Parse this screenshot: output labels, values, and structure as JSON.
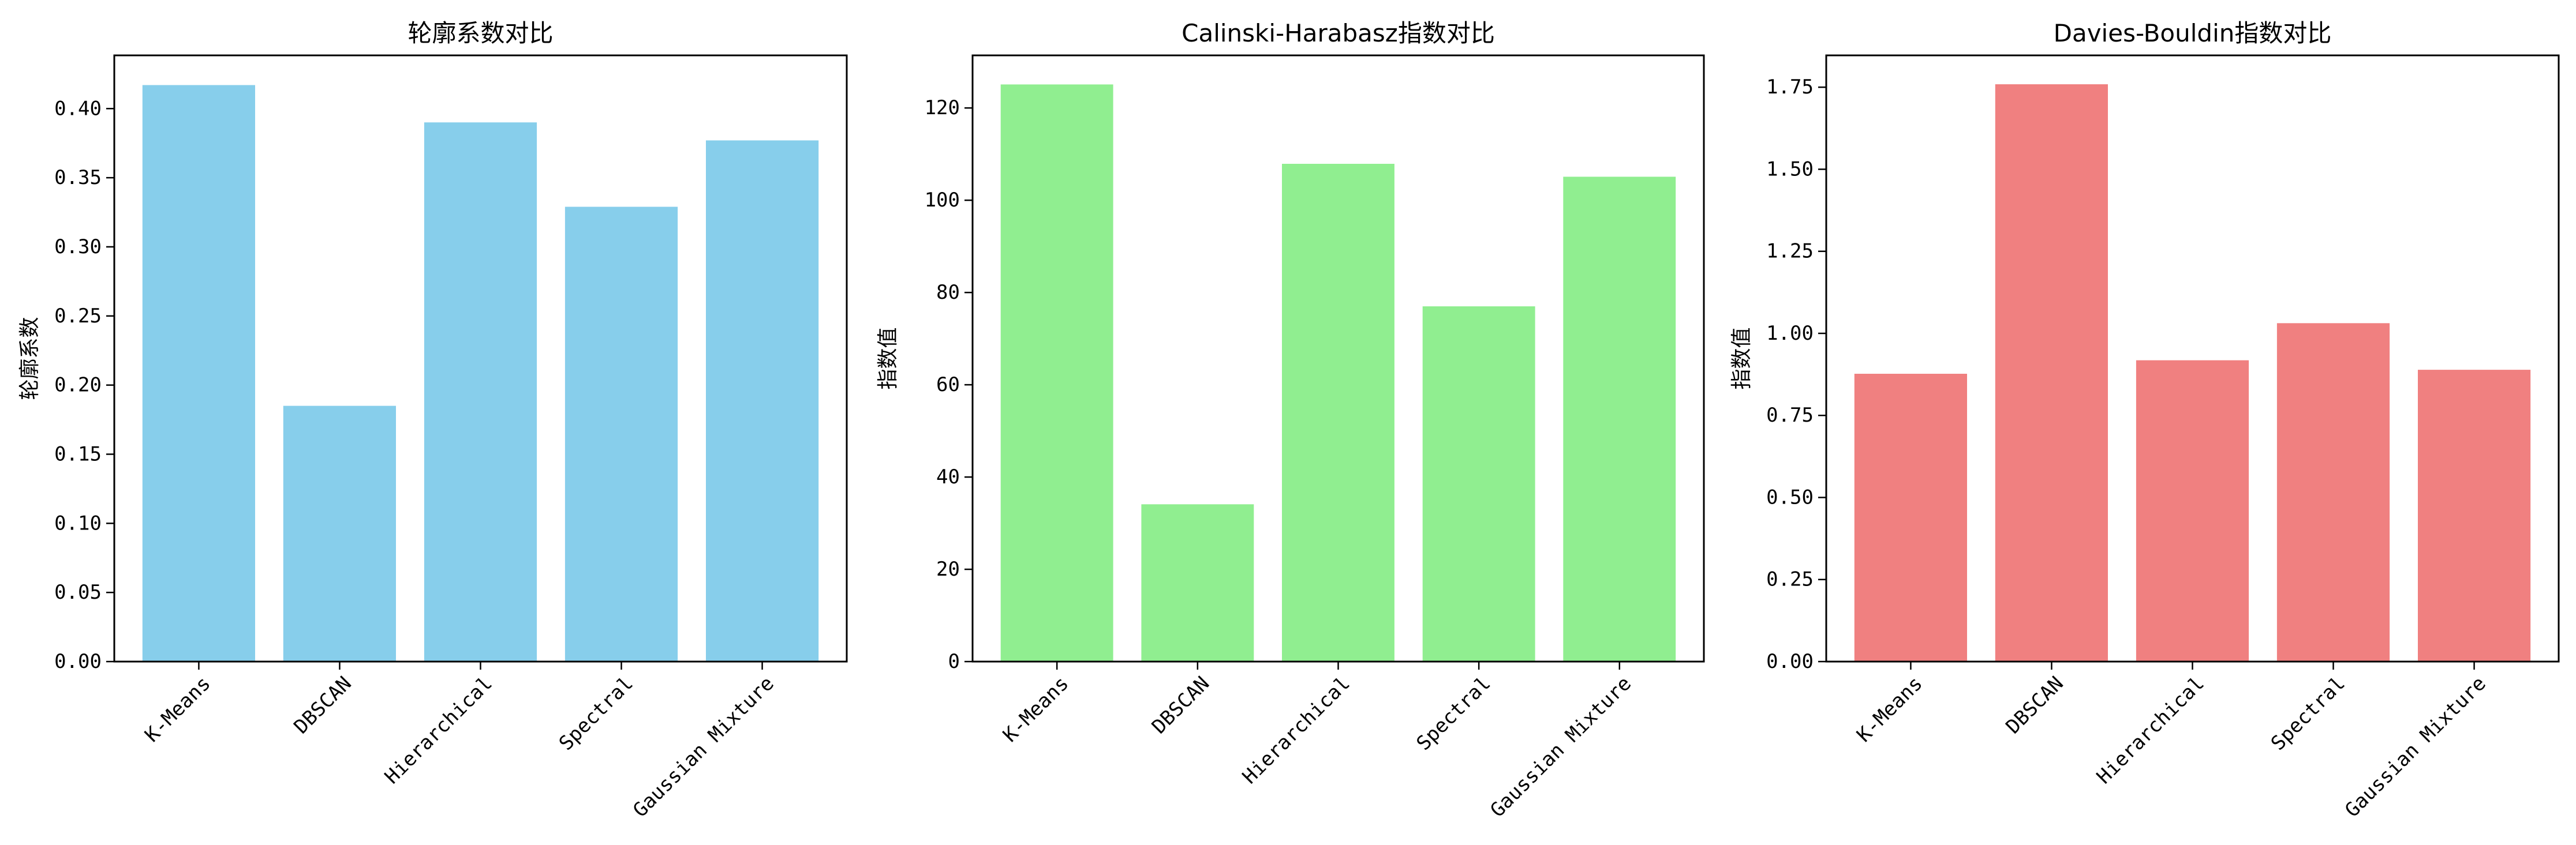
{
  "chart_data": [
    {
      "type": "bar",
      "title": "轮廓系数对比",
      "xlabel": "",
      "ylabel": "轮廓系数",
      "categories": [
        "K-Means",
        "DBSCAN",
        "Hierarchical",
        "Spectral",
        "Gaussian Mixture"
      ],
      "values": [
        0.417,
        0.185,
        0.39,
        0.329,
        0.377
      ],
      "ylim": [
        0,
        0.4385
      ],
      "yticks": [
        0.0,
        0.05,
        0.1,
        0.15,
        0.2,
        0.25,
        0.3,
        0.35,
        0.4
      ],
      "ytick_labels": [
        "0.00",
        "0.05",
        "0.10",
        "0.15",
        "0.20",
        "0.25",
        "0.30",
        "0.35",
        "0.40"
      ],
      "color": "#87CEEB",
      "grid": false
    },
    {
      "type": "bar",
      "title": "Calinski-Harabasz指数对比",
      "xlabel": "",
      "ylabel": "指数值",
      "categories": [
        "K-Means",
        "DBSCAN",
        "Hierarchical",
        "Spectral",
        "Gaussian Mixture"
      ],
      "values": [
        125.1,
        34.1,
        107.9,
        77.0,
        105.1
      ],
      "ylim": [
        0,
        131.4
      ],
      "yticks": [
        0,
        20,
        40,
        60,
        80,
        100,
        120
      ],
      "ytick_labels": [
        "0",
        "20",
        "40",
        "60",
        "80",
        "100",
        "120"
      ],
      "color": "#90EE90",
      "grid": false
    },
    {
      "type": "bar",
      "title": "Davies-Bouldin指数对比",
      "xlabel": "",
      "ylabel": "指数值",
      "categories": [
        "K-Means",
        "DBSCAN",
        "Hierarchical",
        "Spectral",
        "Gaussian Mixture"
      ],
      "values": [
        0.877,
        1.759,
        0.918,
        1.031,
        0.889
      ],
      "ylim": [
        0,
        1.847
      ],
      "yticks": [
        0.0,
        0.25,
        0.5,
        0.75,
        1.0,
        1.25,
        1.5,
        1.75
      ],
      "ytick_labels": [
        "0.00",
        "0.25",
        "0.50",
        "0.75",
        "1.00",
        "1.25",
        "1.50",
        "1.75"
      ],
      "color": "#F08080",
      "grid": false
    }
  ]
}
